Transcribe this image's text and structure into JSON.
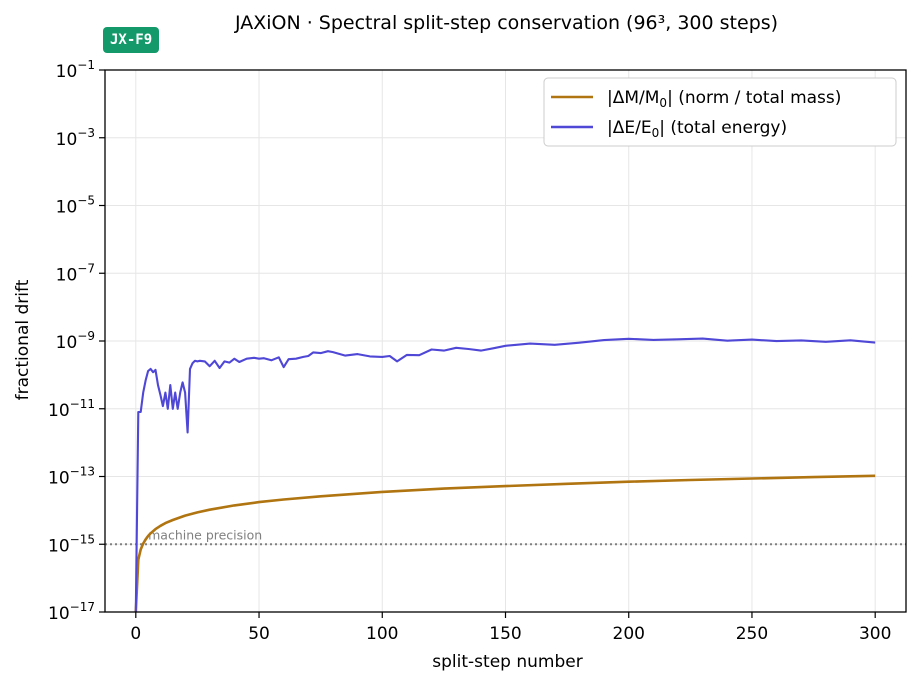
{
  "badge": "JX-F9",
  "chart_data": {
    "type": "line",
    "title": "JAXiON · Spectral split-step conservation (96³, 300 steps)",
    "xlabel": "split-step number",
    "ylabel": "fractional drift",
    "xlim": [
      -12.5,
      312.5
    ],
    "ylim": [
      1e-17,
      0.1
    ],
    "yscale": "log",
    "x_ticks": [
      0,
      50,
      100,
      150,
      200,
      250,
      300
    ],
    "y_tick_exponents": [
      -1,
      -3,
      -5,
      -7,
      -9,
      -11,
      -13,
      -15,
      -17
    ],
    "grid": true,
    "legend_position": "top-right",
    "reference_line": {
      "value": 1e-15,
      "label": "machine precision",
      "style": "dotted",
      "color": "#808080"
    },
    "series": [
      {
        "name": "|ΔM/M₀|  (norm / total mass)",
        "legend_main": "|ΔM/M",
        "legend_sub": "0",
        "legend_tail": "|  (norm / total mass)",
        "color": "#b07410",
        "x": [
          0,
          1,
          2,
          3,
          4,
          5,
          6,
          8,
          10,
          12,
          15,
          20,
          25,
          30,
          40,
          50,
          60,
          75,
          100,
          125,
          150,
          175,
          200,
          225,
          250,
          275,
          300
        ],
        "y": [
          1e-17,
          3.5e-16,
          7e-16,
          1.05e-15,
          1.4e-15,
          1.75e-15,
          2.1e-15,
          2.8e-15,
          3.5e-15,
          4.2e-15,
          5.2e-15,
          7e-15,
          8.7e-15,
          1.05e-14,
          1.4e-14,
          1.75e-14,
          2.1e-14,
          2.6e-14,
          3.5e-14,
          4.4e-14,
          5.2e-14,
          6.1e-14,
          7e-14,
          7.9e-14,
          8.7e-14,
          9.6e-14,
          1.05e-13
        ]
      },
      {
        "name": "|ΔE/E₀|  (total energy)",
        "legend_main": "|ΔE/E",
        "legend_sub": "0",
        "legend_tail": "|  (total energy)",
        "color": "#4f47d6",
        "x": [
          0,
          1,
          2,
          3,
          4,
          5,
          6,
          7,
          8,
          9,
          10,
          11,
          12,
          13,
          14,
          15,
          16,
          17,
          18,
          19,
          20,
          21,
          22,
          23,
          24,
          25,
          26,
          28,
          30,
          32,
          34,
          36,
          38,
          40,
          42,
          45,
          48,
          50,
          52,
          55,
          58,
          60,
          62,
          65,
          68,
          70,
          72,
          75,
          78,
          80,
          85,
          90,
          95,
          100,
          103,
          106,
          110,
          115,
          120,
          125,
          130,
          135,
          140,
          145,
          150,
          155,
          160,
          170,
          180,
          190,
          200,
          210,
          220,
          230,
          240,
          250,
          260,
          270,
          280,
          290,
          300
        ],
        "y": [
          1e-17,
          8e-12,
          8e-12,
          3e-11,
          7e-11,
          1.3e-10,
          1.5e-10,
          1.2e-10,
          1.4e-10,
          5e-11,
          2.5e-11,
          1.2e-11,
          3e-11,
          1e-11,
          5e-11,
          1e-11,
          3e-11,
          1e-11,
          3e-11,
          6e-11,
          3e-11,
          2e-12,
          1.5e-10,
          2.2e-10,
          2.6e-10,
          2.5e-10,
          2.6e-10,
          2.5e-10,
          1.8e-10,
          2.6e-10,
          1.6e-10,
          2.5e-10,
          2.3e-10,
          3e-10,
          2.4e-10,
          3e-10,
          3.2e-10,
          3e-10,
          3.1e-10,
          2.7e-10,
          3.3e-10,
          1.7e-10,
          2.9e-10,
          3e-10,
          3.4e-10,
          3.6e-10,
          4.6e-10,
          4.4e-10,
          5e-10,
          4.7e-10,
          3.7e-10,
          4.1e-10,
          3.5e-10,
          3.4e-10,
          3.6e-10,
          2.5e-10,
          3.9e-10,
          3.8e-10,
          5.6e-10,
          5.2e-10,
          6.3e-10,
          5.8e-10,
          5.2e-10,
          6.1e-10,
          7.2e-10,
          7.8e-10,
          8.4e-10,
          7.7e-10,
          8.9e-10,
          1.06e-09,
          1.16e-09,
          1.08e-09,
          1.12e-09,
          1.18e-09,
          1.02e-09,
          1.1e-09,
          9.9e-10,
          1.04e-09,
          9.5e-10,
          1.05e-09,
          9e-10
        ]
      }
    ]
  }
}
